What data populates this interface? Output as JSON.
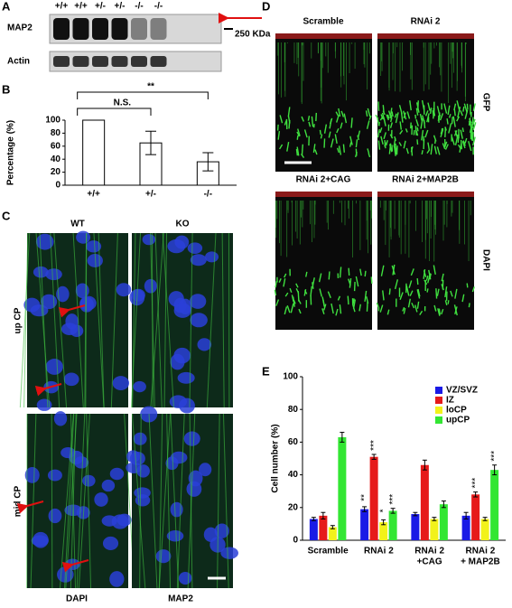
{
  "panel_labels": [
    "A",
    "B",
    "C",
    "D",
    "E"
  ],
  "blot": {
    "lanes": [
      "+/+",
      "+/+",
      "+/-",
      "+/-",
      "-/-",
      "-/-"
    ],
    "rows": [
      "MAP2",
      "Actin"
    ],
    "marker": "250 KDa"
  },
  "micrograph_c": {
    "columns": [
      "WT",
      "KO"
    ],
    "rows": [
      "up CP",
      "mid CP"
    ],
    "stains": [
      {
        "name": "DAPI",
        "color": "#1f2fd0"
      },
      {
        "name": "MAP2",
        "color": "#2fd020"
      }
    ]
  },
  "micrograph_d": {
    "panels": [
      "Scramble",
      "RNAi 2",
      "RNAi 2+CAG",
      "RNAi 2+MAP2B"
    ],
    "stains": [
      {
        "name": "GFP",
        "color": "#2fd020"
      },
      {
        "name": "DAPI",
        "color": "#d02020"
      }
    ]
  },
  "chart_data": [
    {
      "type": "bar",
      "categories": [
        "+/+",
        "+/-",
        "-/-"
      ],
      "values": [
        100,
        65,
        36
      ],
      "errors": [
        0,
        18,
        14
      ],
      "color": "#ffffff",
      "ylabel": "Percentage (%)",
      "ylim": [
        0,
        100
      ],
      "yticks": [
        0,
        20,
        40,
        60,
        80,
        100
      ],
      "annotations": [
        "N.S.",
        "**"
      ]
    },
    {
      "type": "grouped_bar",
      "categories": [
        [
          "Scramble"
        ],
        [
          "RNAi 2"
        ],
        [
          "RNAi 2",
          "+CAG"
        ],
        [
          "RNAi 2",
          "+ MAP2B"
        ]
      ],
      "ylabel": "Cell number (%)",
      "ylim": [
        0,
        100
      ],
      "yticks": [
        0,
        20,
        40,
        60,
        80,
        100
      ],
      "series": [
        {
          "name": "VZ/SVZ",
          "color": "#1a1ae6",
          "values": [
            13,
            19,
            16,
            15
          ],
          "errors": [
            1,
            1.5,
            1,
            2
          ],
          "annotations": [
            null,
            "**",
            null,
            null
          ]
        },
        {
          "name": "IZ",
          "color": "#e61a1a",
          "values": [
            15,
            51,
            46,
            28
          ],
          "errors": [
            2,
            1.5,
            3,
            1.5
          ],
          "annotations": [
            null,
            "***",
            null,
            "***"
          ]
        },
        {
          "name": "loCP",
          "color": "#f2f21a",
          "values": [
            8,
            11,
            13,
            13
          ],
          "errors": [
            1,
            1.5,
            1,
            1
          ],
          "annotations": [
            null,
            "*",
            null,
            null
          ]
        },
        {
          "name": "upCP",
          "color": "#33e633",
          "values": [
            63,
            18,
            22,
            43
          ],
          "errors": [
            3,
            1.5,
            2,
            3
          ],
          "annotations": [
            null,
            "***",
            null,
            "***"
          ]
        }
      ]
    }
  ]
}
